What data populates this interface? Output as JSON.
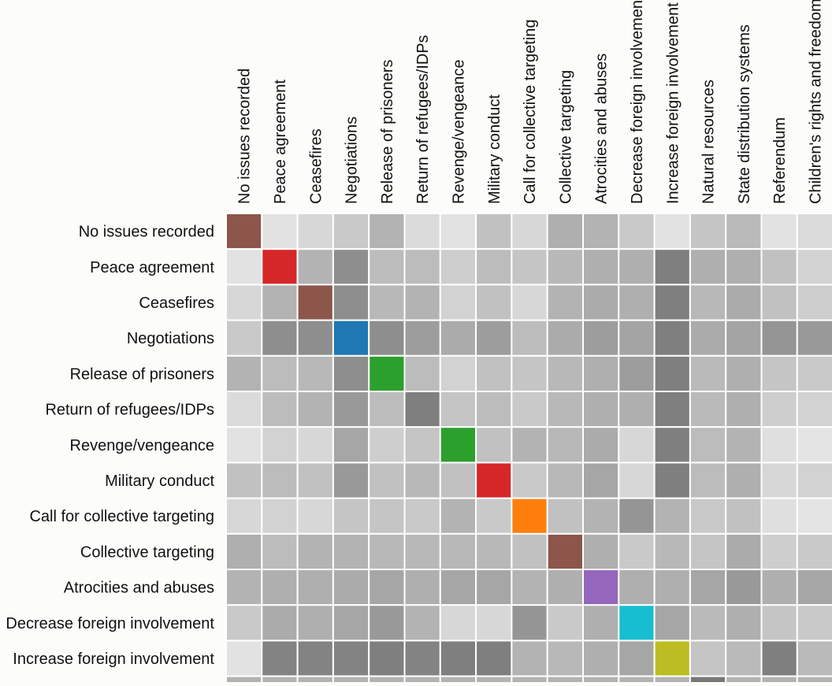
{
  "chart_data": {
    "type": "heatmap",
    "title": "",
    "xlabel": "",
    "ylabel": "",
    "column_labels": [
      "No issues recorded",
      "Peace agreement",
      "Ceasefires",
      "Negotiations",
      "Release of prisoners",
      "Return of refugees/IDPs",
      "Revenge/vengeance",
      "Military conduct",
      "Call for collective targeting",
      "Collective targeting",
      "Atrocities and abuses",
      "Decrease foreign involvement",
      "Increase foreign involvement",
      "Natural resources",
      "State distribution systems",
      "Referendum",
      "Children's rights and freedoms"
    ],
    "row_labels": [
      "No issues recorded",
      "Peace agreement",
      "Ceasefires",
      "Negotiations",
      "Release of prisoners",
      "Return of refugees/IDPs",
      "Revenge/vengeance",
      "Military conduct",
      "Call for collective targeting",
      "Collective targeting",
      "Atrocities and abuses",
      "Decrease foreign involvement",
      "Increase foreign involvement"
    ],
    "values": [
      [
        1.0,
        0.07,
        0.12,
        0.18,
        0.28,
        0.1,
        0.07,
        0.22,
        0.12,
        0.3,
        0.28,
        0.18,
        0.07,
        0.2,
        0.25,
        0.07,
        0.1
      ],
      [
        0.07,
        1.0,
        0.28,
        0.45,
        0.24,
        0.24,
        0.16,
        0.24,
        0.2,
        0.26,
        0.3,
        0.3,
        0.52,
        0.3,
        0.3,
        0.22,
        0.14
      ],
      [
        0.12,
        0.28,
        1.0,
        0.45,
        0.26,
        0.28,
        0.14,
        0.22,
        0.12,
        0.28,
        0.32,
        0.3,
        0.52,
        0.26,
        0.32,
        0.22,
        0.16
      ],
      [
        0.18,
        0.45,
        0.45,
        1.0,
        0.45,
        0.38,
        0.32,
        0.38,
        0.24,
        0.32,
        0.38,
        0.35,
        0.52,
        0.32,
        0.35,
        0.42,
        0.4
      ],
      [
        0.28,
        0.24,
        0.26,
        0.45,
        1.0,
        0.24,
        0.14,
        0.22,
        0.2,
        0.26,
        0.3,
        0.38,
        0.52,
        0.25,
        0.3,
        0.2,
        0.18
      ],
      [
        0.1,
        0.24,
        0.28,
        0.4,
        0.24,
        1.0,
        0.2,
        0.24,
        0.18,
        0.26,
        0.3,
        0.3,
        0.52,
        0.25,
        0.3,
        0.16,
        0.14
      ],
      [
        0.07,
        0.14,
        0.12,
        0.34,
        0.16,
        0.2,
        1.0,
        0.22,
        0.28,
        0.26,
        0.32,
        0.12,
        0.52,
        0.24,
        0.28,
        0.08,
        0.06
      ],
      [
        0.22,
        0.24,
        0.22,
        0.4,
        0.22,
        0.26,
        0.22,
        1.0,
        0.18,
        0.26,
        0.34,
        0.12,
        0.52,
        0.24,
        0.3,
        0.12,
        0.14
      ],
      [
        0.12,
        0.14,
        0.12,
        0.2,
        0.2,
        0.18,
        0.28,
        0.18,
        1.0,
        0.22,
        0.28,
        0.42,
        0.28,
        0.18,
        0.22,
        0.08,
        0.06
      ],
      [
        0.3,
        0.24,
        0.28,
        0.28,
        0.26,
        0.26,
        0.26,
        0.26,
        0.22,
        1.0,
        0.3,
        0.18,
        0.26,
        0.2,
        0.32,
        0.16,
        0.18
      ],
      [
        0.28,
        0.3,
        0.3,
        0.32,
        0.34,
        0.3,
        0.34,
        0.34,
        0.28,
        0.3,
        1.0,
        0.3,
        0.3,
        0.34,
        0.4,
        0.3,
        0.34
      ],
      [
        0.18,
        0.32,
        0.3,
        0.34,
        0.4,
        0.28,
        0.12,
        0.12,
        0.42,
        0.18,
        0.3,
        1.0,
        0.34,
        0.25,
        0.3,
        0.2,
        0.18
      ],
      [
        0.07,
        0.5,
        0.5,
        0.5,
        0.52,
        0.5,
        0.52,
        0.52,
        0.28,
        0.26,
        0.3,
        0.34,
        1.0,
        0.2,
        0.25,
        0.52,
        0.25
      ]
    ],
    "diagonal_colors": [
      "#8c564b",
      "#d62728",
      "#8c564b",
      "#1f77b4",
      "#2ca02c",
      "#7f7f7f",
      "#2ca02c",
      "#d62728",
      "#ff7f0e",
      "#8c564b",
      "#9467bd",
      "#17becf",
      "#bcbd22"
    ],
    "colormap": "grayscale (light = low, dark = high)",
    "grid": true,
    "legend": "none"
  }
}
